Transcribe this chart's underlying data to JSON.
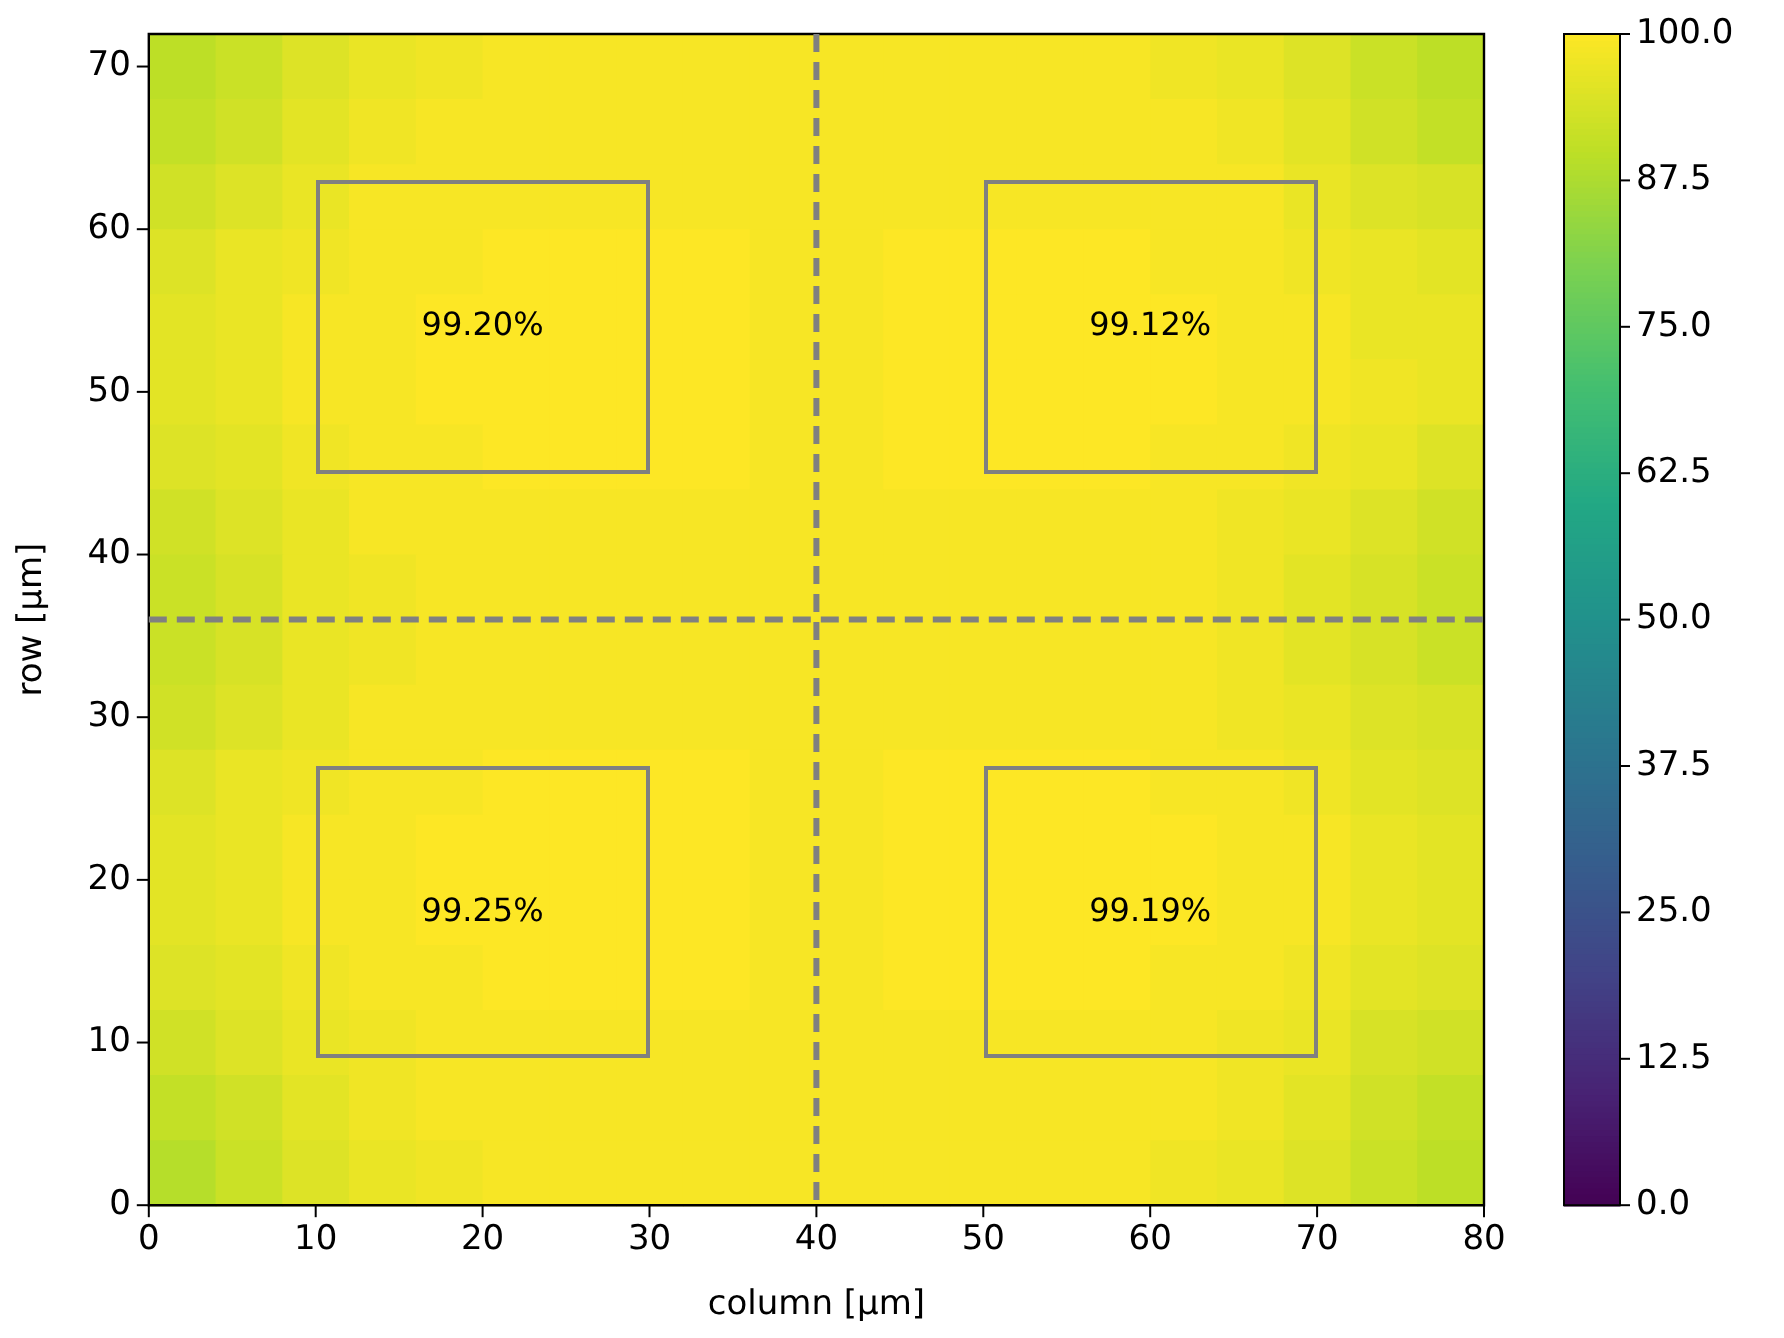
{
  "chart_data": {
    "type": "heatmap",
    "xlabel": "column [µm]",
    "ylabel": "row [µm]",
    "xlim": [
      0,
      80
    ],
    "ylim": [
      0,
      72
    ],
    "xticks": [
      0,
      10,
      20,
      30,
      40,
      50,
      60,
      70,
      80
    ],
    "yticks": [
      0,
      10,
      20,
      30,
      40,
      50,
      60,
      70
    ],
    "clim": [
      0,
      100
    ],
    "cticks": [
      {
        "value": 0,
        "label": "0.0"
      },
      {
        "value": 12.5,
        "label": "12.5"
      },
      {
        "value": 25,
        "label": "25.0"
      },
      {
        "value": 37.5,
        "label": "37.5"
      },
      {
        "value": 50,
        "label": "50.0"
      },
      {
        "value": 62.5,
        "label": "62.5"
      },
      {
        "value": 75,
        "label": "75.0"
      },
      {
        "value": 87.5,
        "label": "87.5"
      },
      {
        "value": 100,
        "label": "100.0"
      }
    ],
    "grid": false,
    "ref_lines": [
      {
        "axis": "x",
        "value": 40,
        "color": "#808080",
        "line_style": "dashed"
      },
      {
        "axis": "y",
        "value": 36,
        "color": "#808080",
        "line_style": "dashed"
      }
    ],
    "annotations": [
      "99.20%",
      "99.12%",
      "99.25%",
      "99.19%"
    ],
    "cells": [
      [
        90,
        92,
        95,
        97,
        98,
        99,
        99,
        99,
        99,
        99,
        99,
        99,
        99,
        99,
        99,
        98,
        97,
        95,
        92,
        90
      ],
      [
        91,
        93,
        96,
        98,
        99,
        99,
        99,
        99,
        99,
        99,
        99,
        99,
        99,
        99,
        99,
        99,
        98,
        96,
        93,
        91
      ],
      [
        93,
        95,
        97,
        99,
        99,
        99,
        99,
        99,
        99,
        99,
        99,
        99,
        99,
        99,
        99,
        99,
        99,
        97,
        95,
        94
      ],
      [
        95,
        97,
        98,
        99,
        99,
        100,
        100,
        100,
        100,
        99,
        99,
        100,
        100,
        100,
        100,
        99,
        99,
        98,
        97,
        96
      ],
      [
        96,
        97,
        99,
        99,
        100,
        100,
        100,
        100,
        100,
        99,
        99,
        100,
        100,
        100,
        100,
        100,
        99,
        99,
        97,
        97
      ],
      [
        96,
        97,
        99,
        99,
        100,
        100,
        100,
        100,
        100,
        99,
        99,
        100,
        100,
        100,
        100,
        100,
        99,
        99,
        98,
        97
      ],
      [
        95,
        96,
        98,
        99,
        99,
        100,
        100,
        100,
        100,
        99,
        99,
        100,
        100,
        100,
        100,
        99,
        99,
        98,
        97,
        95
      ],
      [
        93,
        95,
        97,
        99,
        99,
        99,
        99,
        99,
        99,
        99,
        99,
        99,
        99,
        99,
        99,
        99,
        98,
        97,
        95,
        93
      ],
      [
        92,
        94,
        97,
        98,
        99,
        99,
        99,
        99,
        99,
        99,
        99,
        99,
        99,
        99,
        99,
        99,
        98,
        96,
        94,
        92
      ],
      [
        92,
        94,
        97,
        98,
        99,
        99,
        99,
        99,
        99,
        99,
        99,
        99,
        99,
        99,
        99,
        99,
        98,
        96,
        94,
        92
      ],
      [
        93,
        95,
        97,
        99,
        99,
        99,
        99,
        99,
        99,
        99,
        99,
        99,
        99,
        99,
        99,
        99,
        98,
        97,
        95,
        94
      ],
      [
        95,
        97,
        98,
        99,
        99,
        100,
        100,
        100,
        100,
        99,
        99,
        100,
        100,
        100,
        100,
        99,
        99,
        98,
        96,
        95
      ],
      [
        96,
        97,
        99,
        99,
        100,
        100,
        100,
        100,
        100,
        99,
        99,
        100,
        100,
        100,
        100,
        100,
        99,
        99,
        97,
        96
      ],
      [
        96,
        97,
        99,
        99,
        100,
        100,
        100,
        100,
        100,
        99,
        99,
        100,
        100,
        100,
        100,
        100,
        99,
        99,
        97,
        96
      ],
      [
        95,
        96,
        98,
        99,
        99,
        100,
        100,
        100,
        100,
        99,
        99,
        100,
        100,
        100,
        100,
        99,
        99,
        98,
        96,
        95
      ],
      [
        93,
        95,
        97,
        98,
        99,
        99,
        99,
        99,
        99,
        99,
        99,
        99,
        99,
        99,
        99,
        99,
        98,
        97,
        94,
        93
      ],
      [
        91,
        93,
        96,
        98,
        99,
        99,
        99,
        99,
        99,
        99,
        99,
        99,
        99,
        99,
        99,
        99,
        98,
        96,
        93,
        91
      ],
      [
        89,
        92,
        95,
        97,
        98,
        99,
        99,
        99,
        99,
        99,
        99,
        99,
        99,
        99,
        99,
        98,
        97,
        95,
        92,
        90
      ]
    ]
  }
}
